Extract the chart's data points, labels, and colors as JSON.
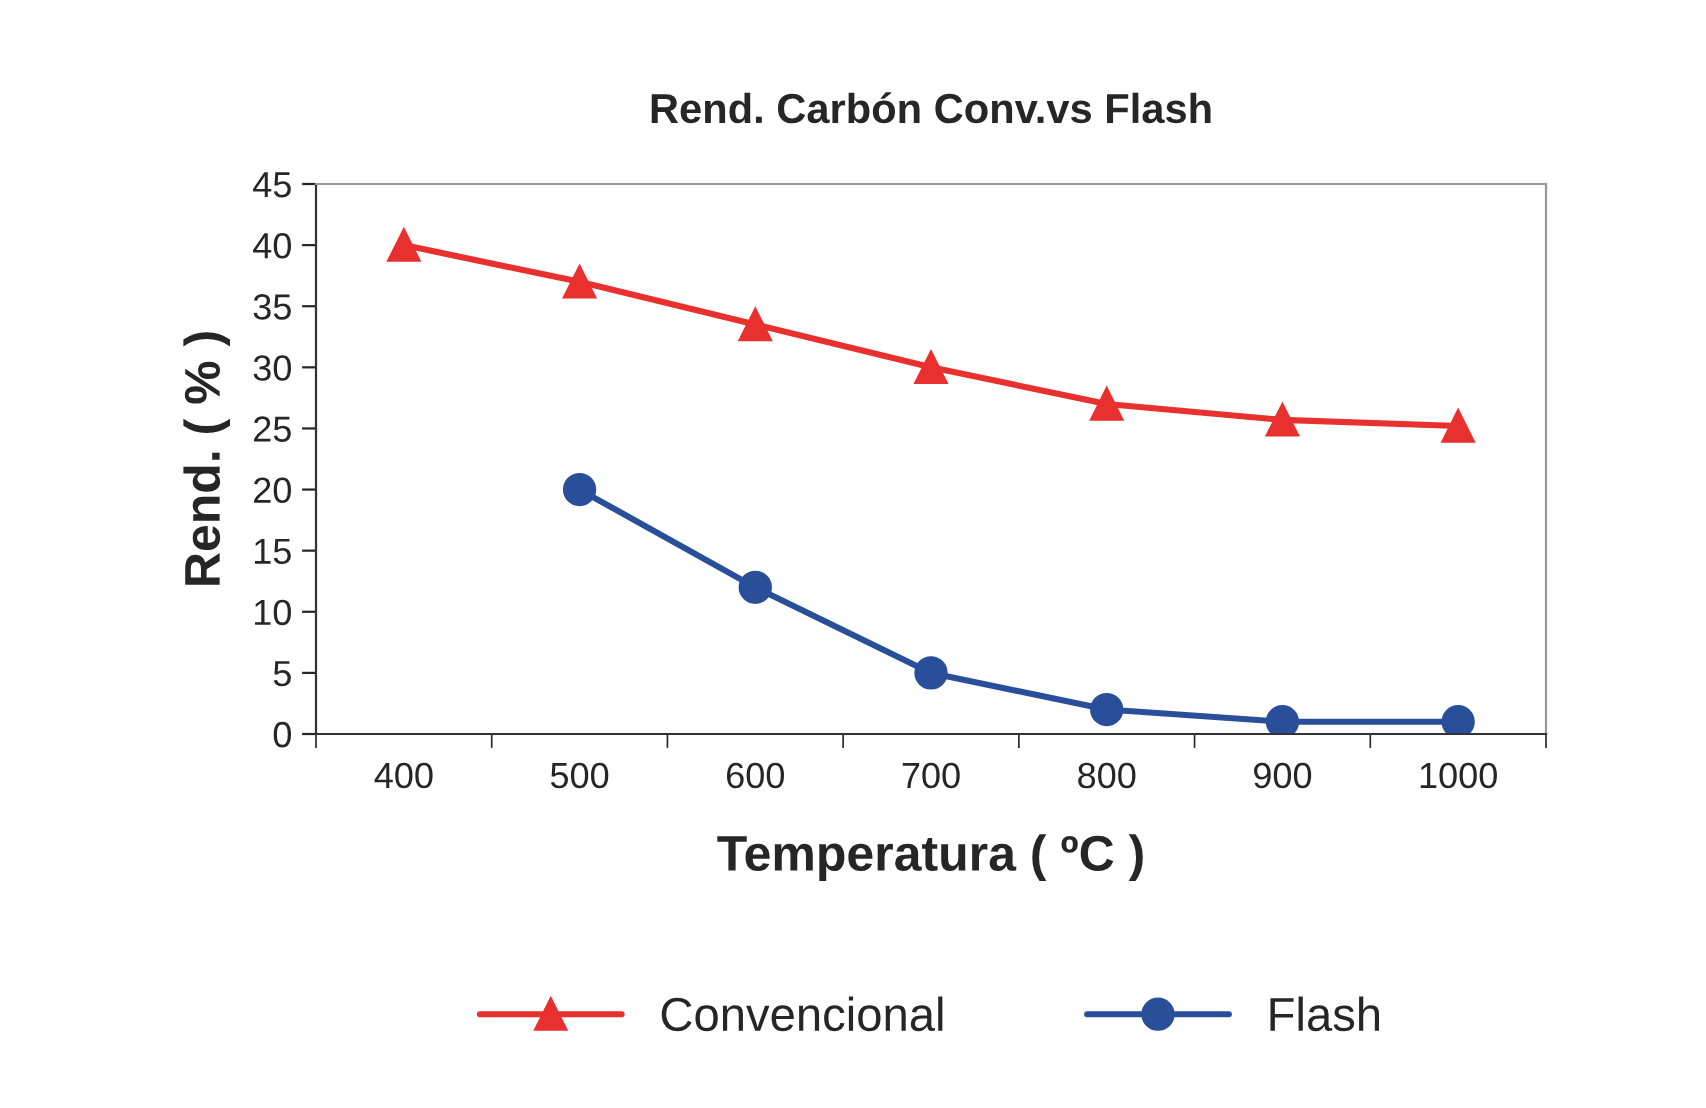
{
  "chart_data": {
    "type": "line",
    "title": "Rend. Carbón Conv.vs Flash",
    "xlabel": "Temperatura ( ºC )",
    "ylabel": "Rend. ( % )",
    "categories": [
      "400",
      "500",
      "600",
      "700",
      "800",
      "900",
      "1000"
    ],
    "series": [
      {
        "name": "Convencional",
        "color": "#e8312f",
        "marker": "triangle",
        "values": [
          40,
          37,
          33.5,
          30,
          27,
          25.7,
          25.2
        ]
      },
      {
        "name": "Flash",
        "color": "#2a4f9a",
        "marker": "circle",
        "values": [
          null,
          20,
          12,
          5,
          2,
          1,
          1
        ]
      }
    ],
    "ylim": [
      0,
      45
    ],
    "yticks": [
      0,
      5,
      10,
      15,
      20,
      25,
      30,
      35,
      40,
      45
    ],
    "grid": false,
    "legend": "bottom",
    "line_style": "solid"
  }
}
